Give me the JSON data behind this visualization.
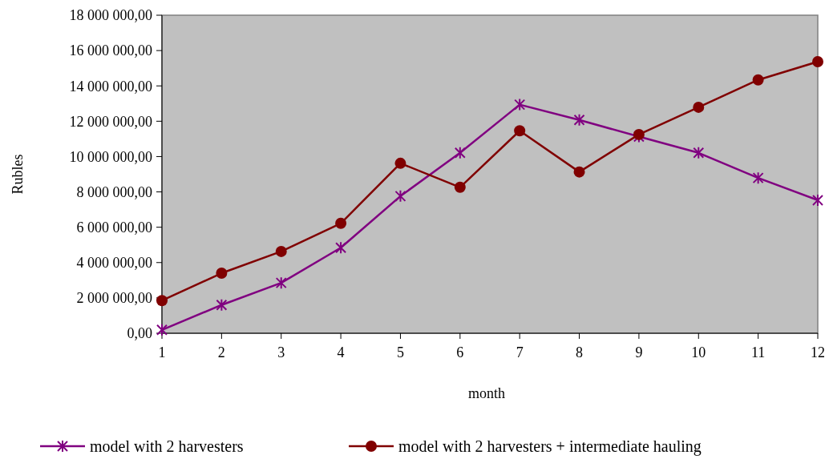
{
  "chart_data": {
    "type": "line",
    "xlabel": "month",
    "ylabel": "Rubles",
    "x": [
      1,
      2,
      3,
      4,
      5,
      6,
      7,
      8,
      9,
      10,
      11,
      12
    ],
    "xlim": [
      1,
      12
    ],
    "xticks": [
      1,
      2,
      3,
      4,
      5,
      6,
      7,
      8,
      9,
      10,
      11,
      12
    ],
    "ylim": [
      0,
      18000000
    ],
    "yticks": [
      {
        "value": 0,
        "label": "0,00"
      },
      {
        "value": 2000000,
        "label": "2 000 000,00"
      },
      {
        "value": 4000000,
        "label": "4 000 000,00"
      },
      {
        "value": 6000000,
        "label": "6 000 000,00"
      },
      {
        "value": 8000000,
        "label": "8 000 000,00"
      },
      {
        "value": 10000000,
        "label": "10 000 000,00"
      },
      {
        "value": 12000000,
        "label": "12 000 000,00"
      },
      {
        "value": 14000000,
        "label": "14 000 000,00"
      },
      {
        "value": 16000000,
        "label": "16 000 000,00"
      },
      {
        "value": 18000000,
        "label": "18 000 000,00"
      }
    ],
    "grid": false,
    "legend": "bottom",
    "series": [
      {
        "name": "model with 2 harvesters",
        "color": "#800080",
        "marker": "cross",
        "values": [
          190000,
          1600000,
          2850000,
          4840000,
          7760000,
          10210000,
          12940000,
          12070000,
          11130000,
          10210000,
          8790000,
          7530000
        ]
      },
      {
        "name": "model with 2 harvesters + intermediate hauling",
        "color": "#800000",
        "marker": "circle",
        "values": [
          1850000,
          3400000,
          4630000,
          6220000,
          9620000,
          8260000,
          11460000,
          9130000,
          11250000,
          12790000,
          14340000,
          15370000
        ]
      }
    ]
  }
}
